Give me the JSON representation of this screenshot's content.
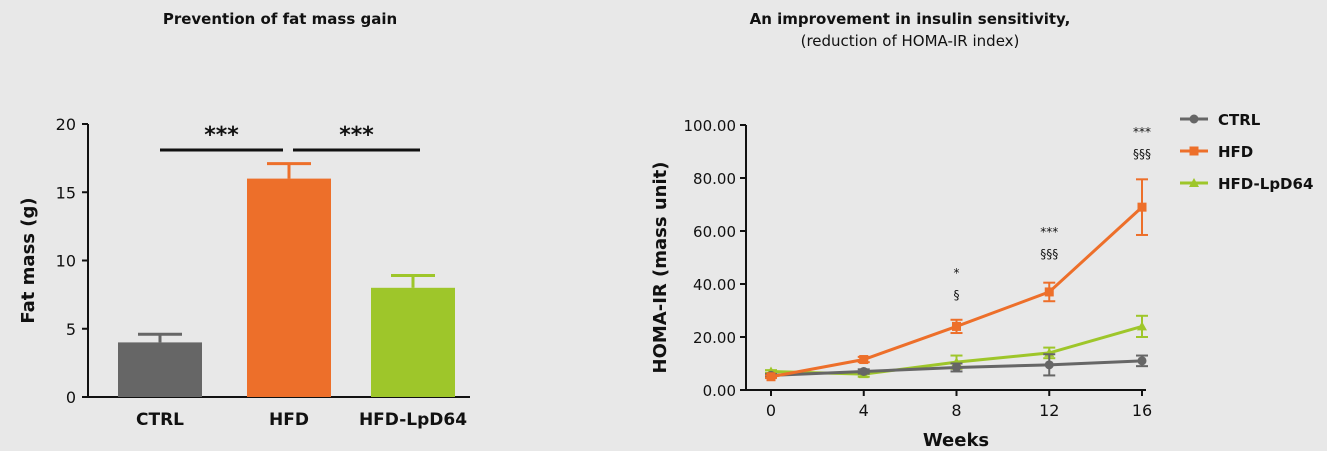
{
  "chart_data": [
    {
      "type": "bar",
      "title": "Prevention of fat mass gain",
      "xlabel": "",
      "ylabel": "Fat mass (g)",
      "categories": [
        "CTRL",
        "HFD",
        "HFD-LpD64"
      ],
      "values": [
        4.0,
        16.0,
        8.0
      ],
      "errors": [
        0.6,
        1.1,
        0.9
      ],
      "colors": [
        "#666666",
        "#ed6f2a",
        "#9ec62a"
      ],
      "ylim": [
        0,
        20
      ],
      "yticks": [
        "0",
        "5",
        "10",
        "15",
        "20"
      ],
      "significance": [
        {
          "from": "CTRL",
          "to": "HFD",
          "label": "***"
        },
        {
          "from": "HFD",
          "to": "HFD-LpD64",
          "label": "***"
        }
      ]
    },
    {
      "type": "line",
      "title": "An improvement in insulin sensitivity,",
      "subtitle": "(reduction of HOMA-IR index)",
      "xlabel": "Weeks",
      "ylabel": "HOMA-IR (mass unit)",
      "x": [
        0,
        4,
        8,
        12,
        16
      ],
      "xticks": [
        "0",
        "4",
        "8",
        "12",
        "16"
      ],
      "yticks": [
        "0.00",
        "20.00",
        "40.00",
        "60.00",
        "80.00",
        "100.00"
      ],
      "ylim": [
        0,
        100
      ],
      "xlim": [
        0,
        16
      ],
      "legend_position": "top-right",
      "series": [
        {
          "name": "CTRL",
          "color": "#666666",
          "marker": "circle",
          "values": [
            5.5,
            7.0,
            8.5,
            9.5,
            11.0
          ],
          "errors": [
            0.5,
            0.8,
            1.5,
            4.0,
            2.0
          ]
        },
        {
          "name": "HFD",
          "color": "#ed6f2a",
          "marker": "square",
          "values": [
            5.0,
            11.5,
            24.0,
            37.0,
            69.0
          ],
          "errors": [
            0.5,
            1.0,
            2.5,
            3.5,
            10.5
          ]
        },
        {
          "name": "HFD-LpD64",
          "color": "#9ec62a",
          "marker": "triangle",
          "values": [
            7.0,
            6.0,
            10.5,
            14.0,
            24.0
          ],
          "errors": [
            0.5,
            1.0,
            2.5,
            2.0,
            4.0
          ]
        }
      ],
      "annotations": [
        {
          "x": 8,
          "star": "*",
          "section": "§"
        },
        {
          "x": 12,
          "star": "***",
          "section": "§§§"
        },
        {
          "x": 16,
          "star": "***",
          "section": "§§§"
        }
      ]
    }
  ]
}
